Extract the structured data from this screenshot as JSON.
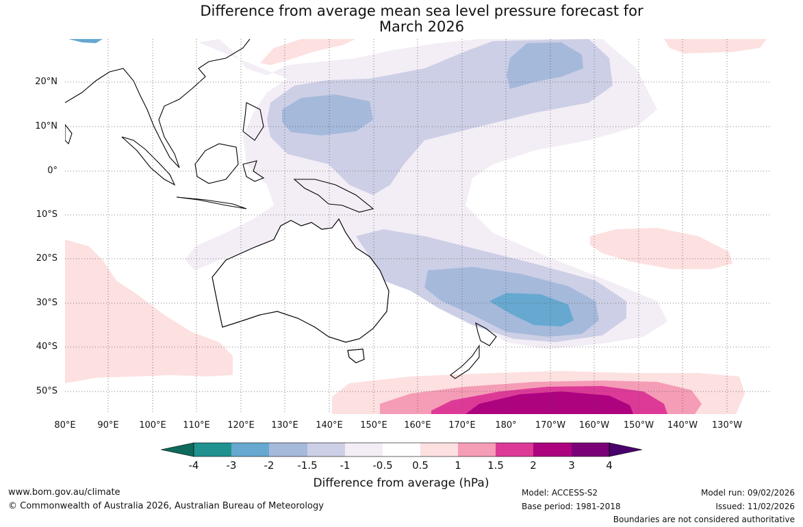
{
  "title": {
    "line1": "Difference from average mean sea level pressure forecast for",
    "line2": "March 2026"
  },
  "lat_labels": [
    "20°N",
    "10°N",
    "0°",
    "10°S",
    "20°S",
    "30°S",
    "40°S",
    "50°S"
  ],
  "lon_labels": [
    "80°E",
    "90°E",
    "100°E",
    "110°E",
    "120°E",
    "130°E",
    "140°E",
    "150°E",
    "160°E",
    "170°E",
    "180°",
    "170°W",
    "160°W",
    "150°W",
    "140°W",
    "130°W"
  ],
  "colorbar": {
    "ticks": [
      "-4",
      "-3",
      "-2",
      "-1.5",
      "-1",
      "-0.5",
      "0.5",
      "1",
      "1.5",
      "2",
      "3",
      "4"
    ],
    "colors": [
      "#0e6a5a",
      "#1f918f",
      "#66a8d0",
      "#a5b9db",
      "#cdcfe6",
      "#f3edf5",
      "#ffffff",
      "#fde0e0",
      "#f59cb6",
      "#dd3a98",
      "#ad037f",
      "#7a0177",
      "#4a006a"
    ],
    "label": "Difference from average (hPa)"
  },
  "footer": {
    "website": "www.bom.gov.au/climate",
    "copyright": "© Commonwealth of Australia 2026, Australian Bureau of Meteorology",
    "model": "Model: ACCESS-S2",
    "base_period": "Base period: 1981-2018",
    "model_run": "Model run: 09/02/2026",
    "issued": "Issued: 11/02/2026",
    "disclaimer": "Boundaries are not considered authoritative"
  }
}
